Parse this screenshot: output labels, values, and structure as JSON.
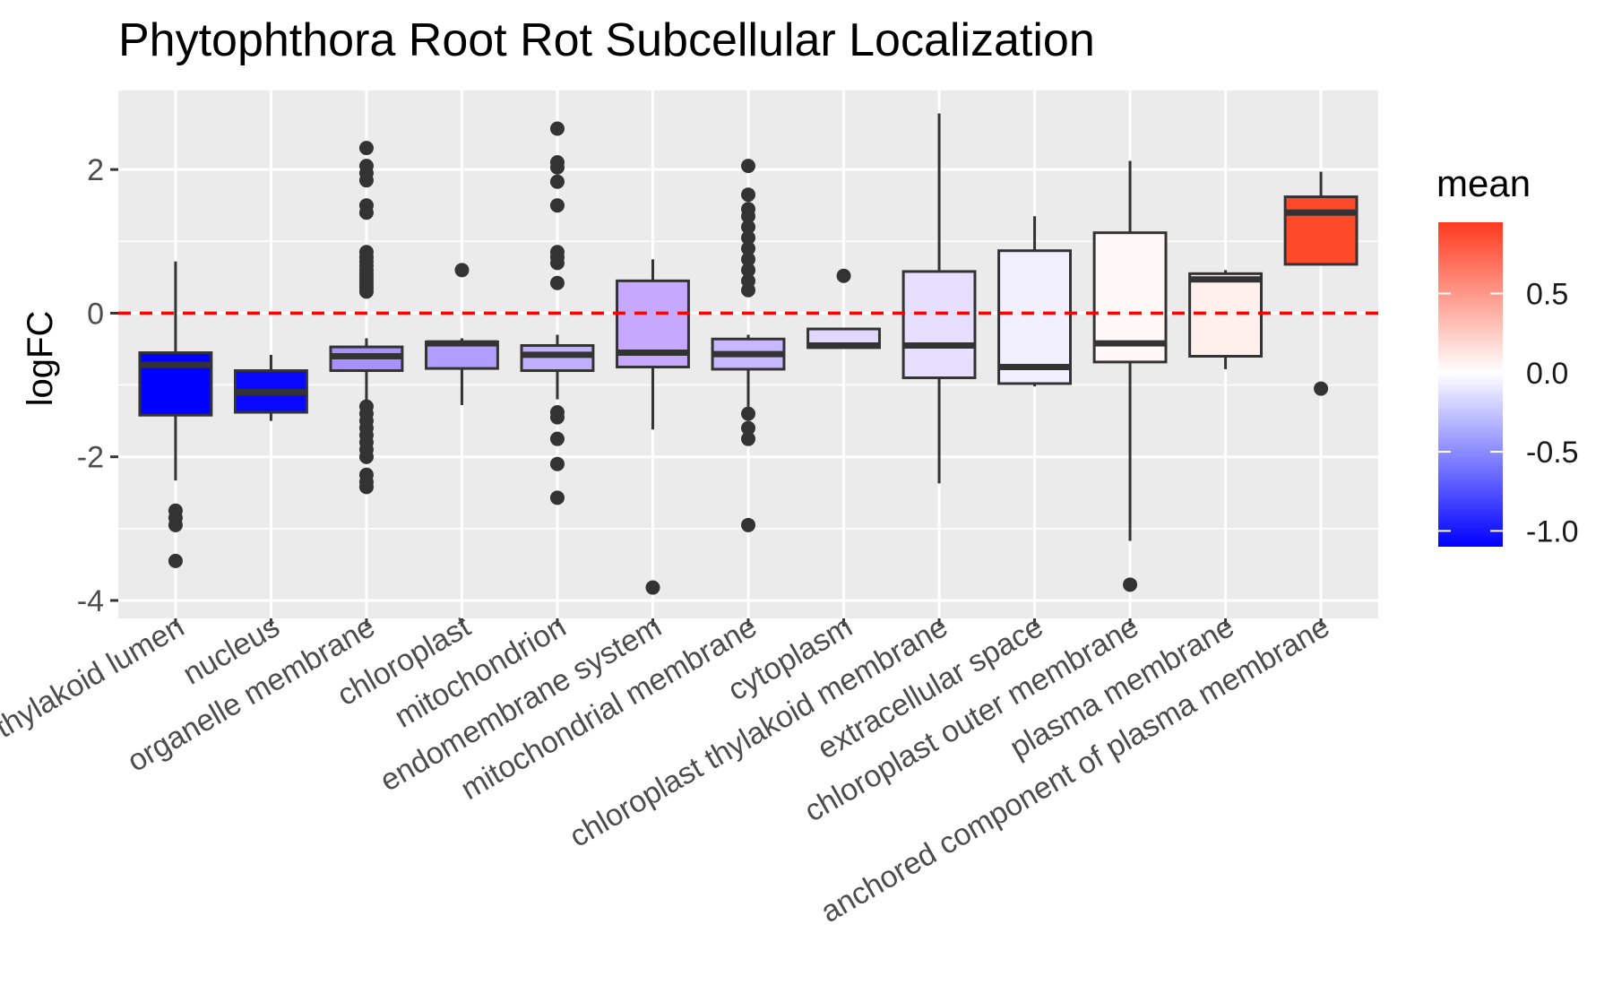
{
  "chart_data": {
    "type": "box",
    "title": "Phytophthora Root Rot Subcellular Localization",
    "xlabel": "",
    "ylabel": "logFC",
    "ylim": [
      -4.25,
      3.1
    ],
    "y_ticks": [
      -4,
      -2,
      0,
      2
    ],
    "y_tick_labels": [
      "-4",
      "-2",
      "0",
      "2"
    ],
    "reference_line": {
      "y": 0,
      "style": "dashed",
      "color": "#ff0000"
    },
    "grid": true,
    "panel_background": "#ebebeb",
    "categories": [
      "chloroplast thylakoid lumen",
      "nucleus",
      "organelle membrane",
      "chloroplast",
      "mitochondrion",
      "endomembrane system",
      "mitochondrial membrane",
      "cytoplasm",
      "chloroplast thylakoid membrane",
      "extracellular space",
      "chloroplast outer membrane",
      "plasma membrane",
      "anchored component of plasma membrane"
    ],
    "category_labels": [
      "chloroplast thylakoid lumen",
      "nucleus",
      "organelle membrane",
      "chloroplast",
      "mitochondrion",
      "endomembrane system",
      "mitochondrial membrane",
      "cytoplasm",
      "chloroplast thylakoid membrane",
      "extracellular space",
      "chloroplast outer membrane",
      "plasma membrane",
      "anchored component of plasma membrane"
    ],
    "boxes": [
      {
        "category": "chloroplast thylakoid lumen",
        "mean": -1.0,
        "fill": "#0000ff",
        "lower_whisker": -2.33,
        "q1": -1.42,
        "median": -0.72,
        "q3": -0.55,
        "upper_whisker": 0.72,
        "outliers": [
          -2.75,
          -2.85,
          -2.95,
          -3.45
        ]
      },
      {
        "category": "nucleus",
        "mean": -1.0,
        "fill": "#0808ff",
        "lower_whisker": -1.5,
        "q1": -1.38,
        "median": -1.1,
        "q3": -0.8,
        "upper_whisker": -0.58,
        "outliers": []
      },
      {
        "category": "organelle membrane",
        "mean": -0.55,
        "fill": "#a791ff",
        "lower_whisker": -2.1,
        "q1": -0.8,
        "median": -0.6,
        "q3": -0.47,
        "upper_whisker": -0.35,
        "outliers": [
          2.3,
          2.05,
          1.95,
          1.85,
          1.5,
          1.4,
          0.85,
          0.78,
          0.72,
          0.66,
          0.6,
          0.55,
          0.5,
          0.45,
          0.4,
          0.35,
          0.3,
          -1.3,
          -1.4,
          -1.5,
          -1.6,
          -1.7,
          -1.8,
          -1.9,
          -2.0,
          -2.25,
          -2.35,
          -2.42
        ]
      },
      {
        "category": "chloroplast",
        "mean": -0.45,
        "fill": "#b09eff",
        "lower_whisker": -1.28,
        "q1": -0.77,
        "median": -0.42,
        "q3": -0.4,
        "upper_whisker": -0.35,
        "outliers": [
          0.6
        ]
      },
      {
        "category": "mitochondrion",
        "mean": -0.5,
        "fill": "#c0b0ff",
        "lower_whisker": -1.2,
        "q1": -0.8,
        "median": -0.58,
        "q3": -0.45,
        "upper_whisker": -0.3,
        "outliers": [
          2.57,
          2.1,
          2.03,
          1.83,
          1.5,
          0.85,
          0.78,
          0.7,
          0.42,
          -1.38,
          -1.45,
          -1.75,
          -2.1,
          -2.57
        ]
      },
      {
        "category": "endomembrane system",
        "mean": -0.35,
        "fill": "#c6a8ff",
        "lower_whisker": -1.62,
        "q1": -0.75,
        "median": -0.55,
        "q3": 0.45,
        "upper_whisker": 0.75,
        "outliers": [
          -3.82
        ]
      },
      {
        "category": "mitochondrial membrane",
        "mean": -0.5,
        "fill": "#c8b8ff",
        "lower_whisker": -1.3,
        "q1": -0.78,
        "median": -0.57,
        "q3": -0.36,
        "upper_whisker": -0.3,
        "outliers": [
          2.05,
          1.65,
          1.45,
          1.35,
          1.2,
          1.05,
          0.9,
          0.75,
          0.6,
          0.45,
          0.32,
          -1.4,
          -1.6,
          -1.75,
          -2.95
        ]
      },
      {
        "category": "cytoplasm",
        "mean": -0.35,
        "fill": "#e0d8ff",
        "lower_whisker": -0.48,
        "q1": -0.48,
        "median": -0.45,
        "q3": -0.22,
        "upper_whisker": -0.22,
        "outliers": [
          0.52
        ]
      },
      {
        "category": "chloroplast thylakoid membrane",
        "mean": -0.15,
        "fill": "#e6dfff",
        "lower_whisker": -2.37,
        "q1": -0.9,
        "median": -0.45,
        "q3": 0.58,
        "upper_whisker": 2.78,
        "outliers": []
      },
      {
        "category": "extracellular space",
        "mean": -0.05,
        "fill": "#f2efff",
        "lower_whisker": -1.02,
        "q1": -0.98,
        "median": -0.75,
        "q3": 0.87,
        "upper_whisker": 1.35,
        "outliers": []
      },
      {
        "category": "chloroplast outer membrane",
        "mean": 0.02,
        "fill": "#fff8f6",
        "lower_whisker": -3.17,
        "q1": -0.68,
        "median": -0.42,
        "q3": 1.12,
        "upper_whisker": 2.12,
        "outliers": [
          -3.78
        ]
      },
      {
        "category": "plasma membrane",
        "mean": 0.05,
        "fill": "#fff0ec",
        "lower_whisker": -0.78,
        "q1": -0.6,
        "median": 0.47,
        "q3": 0.55,
        "upper_whisker": 0.6,
        "outliers": []
      },
      {
        "category": "anchored component of plasma membrane",
        "mean": 0.9,
        "fill": "#ff4a2a",
        "lower_whisker": 0.68,
        "q1": 0.68,
        "median": 1.4,
        "q3": 1.62,
        "upper_whisker": 1.97,
        "outliers": [
          -1.05
        ]
      }
    ],
    "extra_points": [
      {
        "x_index": 11.5,
        "y": 0.98,
        "kind": "box-edge"
      }
    ],
    "legend": {
      "title": "mean",
      "type": "colorbar",
      "placement": "right",
      "range": [
        -1.1,
        0.95
      ],
      "colors": [
        "#0000ff",
        "#ffffff",
        "#ff3a1f"
      ],
      "ticks": [
        -1.0,
        -0.5,
        0.0,
        0.5
      ],
      "tick_labels": [
        "-1.0",
        "-0.5",
        "0.0",
        "0.5"
      ]
    }
  }
}
